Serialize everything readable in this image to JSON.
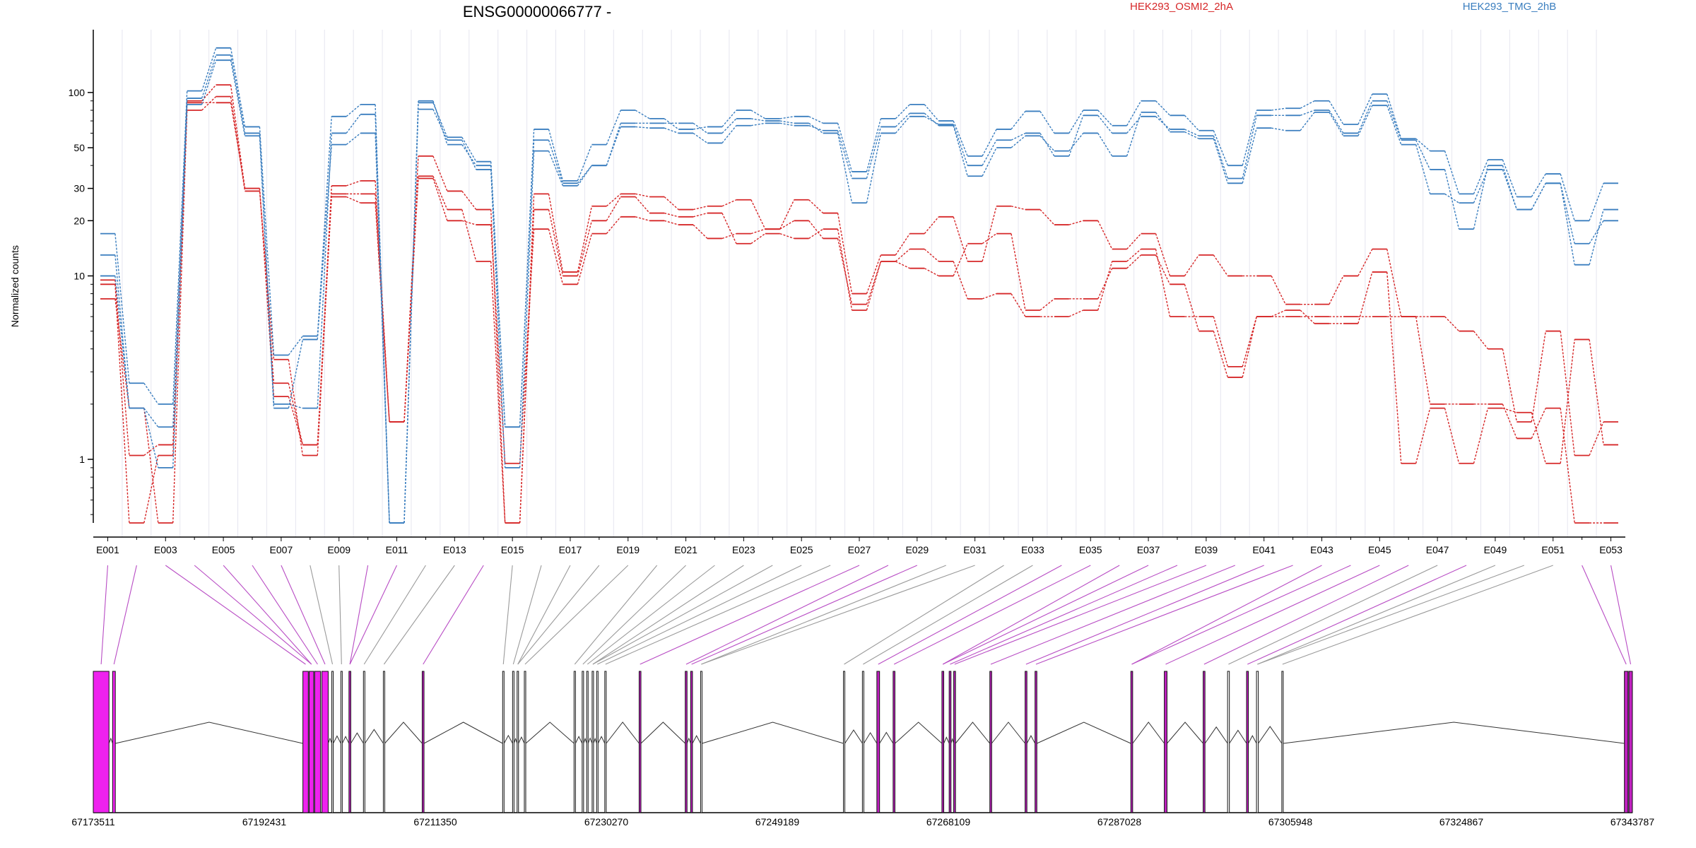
{
  "title": "ENSG00000066777 -",
  "ylabel": "Normalized counts",
  "legend": [
    {
      "label": "HEK293_OSMI2_2hA",
      "color": "#d62728"
    },
    {
      "label": "HEK293_TMG_2hB",
      "color": "#3a7ebf"
    }
  ],
  "chart_data": {
    "type": "line",
    "title": "ENSG00000066777 -",
    "ylabel": "Normalized counts",
    "yscale": "log",
    "ylim": [
      0.45,
      220
    ],
    "yticks": [
      1,
      10,
      20,
      30,
      50,
      100
    ],
    "ytick_labels": [
      "1",
      "10",
      "20",
      "30",
      "50",
      "100"
    ],
    "categories": [
      "E001",
      "E002",
      "E003",
      "E004",
      "E005",
      "E006",
      "E007",
      "E008",
      "E009",
      "E010",
      "E011",
      "E012",
      "E013",
      "E014",
      "E015",
      "E016",
      "E017",
      "E018",
      "E019",
      "E020",
      "E021",
      "E022",
      "E023",
      "E024",
      "E025",
      "E026",
      "E027",
      "E028",
      "E029",
      "E030",
      "E031",
      "E032",
      "E033",
      "E034",
      "E035",
      "E036",
      "E037",
      "E038",
      "E039",
      "E040",
      "E041",
      "E042",
      "E043",
      "E044",
      "E045",
      "E046",
      "E047",
      "E048",
      "E049",
      "E050",
      "E051",
      "E052",
      "E053"
    ],
    "xtick_labels": [
      "E001",
      "E003",
      "E005",
      "E007",
      "E009",
      "E011",
      "E013",
      "E015",
      "E017",
      "E019",
      "E021",
      "E023",
      "E025",
      "E027",
      "E029",
      "E031",
      "E033",
      "E035",
      "E037",
      "E039",
      "E041",
      "E043",
      "E045",
      "E047",
      "E049",
      "E051",
      "E053"
    ],
    "series": [
      {
        "name": "HEK293_OSMI2_2hA",
        "color": "#d62728",
        "values": [
          9.5,
          1.05,
          1.2,
          90,
          110,
          30,
          2.2,
          1.2,
          31,
          33,
          1.6,
          45,
          29,
          23,
          0.45,
          28,
          10.5,
          24,
          28,
          27,
          23,
          24,
          26,
          18,
          26,
          22,
          8,
          13,
          17,
          21,
          12,
          24,
          23,
          19,
          20,
          14,
          17,
          10,
          13,
          10,
          10,
          7,
          7,
          10,
          14,
          6,
          6,
          5,
          4,
          1.6,
          5,
          1.05,
          1.6
        ]
      },
      {
        "name": "HEK293_OSMI2_2hA",
        "color": "#d62728",
        "values": [
          7.5,
          1.9,
          0.45,
          80,
          95,
          29,
          3.5,
          1.05,
          28,
          28,
          1.6,
          34,
          20,
          19,
          0.95,
          18,
          9,
          17,
          21,
          20,
          19,
          16,
          17,
          18,
          20,
          16,
          7,
          12,
          14,
          12,
          7.5,
          8,
          6,
          6,
          6.5,
          12,
          14,
          6,
          6,
          3.2,
          6,
          6,
          6,
          6,
          6,
          6,
          2,
          2,
          2,
          1.3,
          1.9,
          0.45,
          0.45
        ]
      },
      {
        "name": "HEK293_OSMI2_2hA",
        "color": "#d62728",
        "values": [
          9,
          0.45,
          1.05,
          88,
          88,
          30,
          2.6,
          1.2,
          27,
          25,
          1.6,
          35,
          23,
          12,
          0.45,
          23,
          10,
          20,
          27,
          22,
          21,
          22,
          15,
          17,
          16,
          18,
          6.5,
          12,
          11,
          10,
          15,
          17,
          6.5,
          7.5,
          7.5,
          11,
          13,
          9,
          5,
          2.8,
          6,
          6.5,
          5.5,
          5.5,
          10.5,
          0.95,
          1.9,
          0.95,
          1.9,
          1.8,
          0.95,
          4.5,
          1.2
        ]
      },
      {
        "name": "HEK293_TMG_2hB",
        "color": "#3a7ebf",
        "values": [
          17,
          2.6,
          2.0,
          102,
          175,
          65,
          3.7,
          4.7,
          74,
          86,
          0.45,
          88,
          57,
          42,
          1.5,
          63,
          33,
          52,
          80,
          72,
          63,
          65,
          80,
          72,
          74,
          68,
          37,
          72,
          86,
          70,
          45,
          63,
          79,
          60,
          80,
          66,
          90,
          75,
          62,
          40,
          80,
          82,
          90,
          67,
          98,
          56,
          48,
          28,
          43,
          27,
          36,
          20,
          32
        ]
      },
      {
        "name": "HEK293_TMG_2hB",
        "color": "#3a7ebf",
        "values": [
          13,
          1.9,
          1.5,
          93,
          160,
          60,
          2.0,
          1.9,
          60,
          76,
          0.45,
          90,
          52,
          40,
          1.5,
          55,
          32,
          40,
          68,
          68,
          68,
          60,
          72,
          70,
          68,
          60,
          25,
          60,
          74,
          67,
          40,
          55,
          60,
          45,
          75,
          60,
          74,
          63,
          58,
          34,
          75,
          75,
          80,
          60,
          90,
          55,
          38,
          18,
          40,
          23,
          32,
          11.5,
          23
        ]
      },
      {
        "name": "HEK293_TMG_2hB",
        "color": "#3a7ebf",
        "values": [
          10,
          1.9,
          0.9,
          86,
          150,
          58,
          1.9,
          4.5,
          52,
          60,
          0.45,
          81,
          55,
          38,
          0.9,
          48,
          31,
          40,
          65,
          64,
          60,
          53,
          66,
          68,
          66,
          62,
          34,
          65,
          77,
          66,
          35,
          50,
          58,
          48,
          60,
          45,
          78,
          61,
          56,
          32,
          64,
          62,
          78,
          58,
          85,
          52,
          28,
          25,
          38,
          23,
          32,
          15,
          20
        ]
      }
    ],
    "gene_track": {
      "coordinate_ticks": [
        "67173511",
        "67192431",
        "67211350",
        "67230270",
        "67249189",
        "67268109",
        "67287028",
        "67305948",
        "67324867",
        "67343787"
      ],
      "start": 67173511,
      "end": 67343787,
      "exon_colors": {
        "tested": "#ee22ee",
        "counting": "#c020c0",
        "plain": "#000000"
      }
    },
    "grid": true,
    "legend_position": "top"
  }
}
